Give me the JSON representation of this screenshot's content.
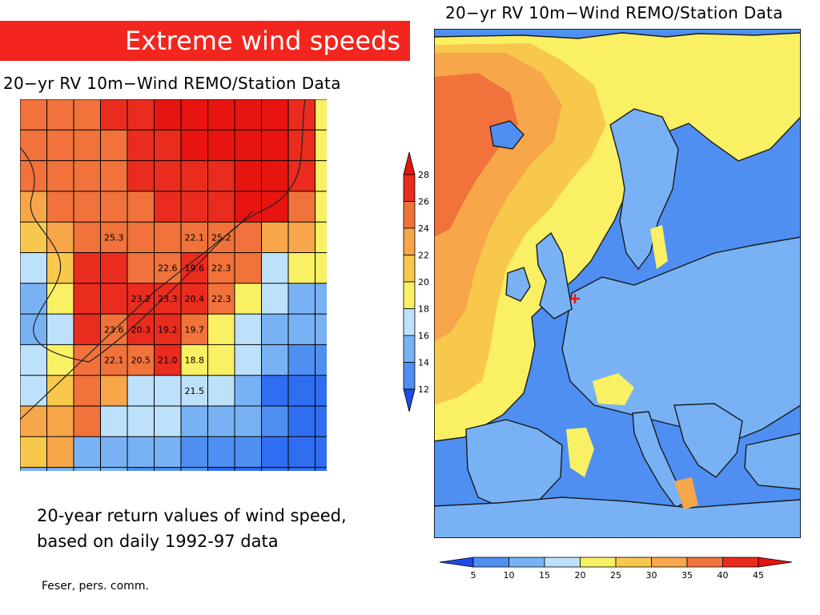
{
  "header": {
    "title": "Extreme wind speeds",
    "accent_color": "#f2261f"
  },
  "left_map": {
    "title": "20−yr RV 10m−Wind REMO/Station Data",
    "rows": [
      [
        8,
        8,
        8,
        9,
        9,
        10,
        10,
        10,
        10,
        10,
        9,
        5,
        4
      ],
      [
        8,
        8,
        8,
        8,
        9,
        9,
        10,
        10,
        10,
        10,
        9,
        5,
        6
      ],
      [
        8,
        8,
        8,
        8,
        9,
        9,
        9,
        9,
        10,
        10,
        9,
        5,
        5
      ],
      [
        7,
        8,
        8,
        8,
        8,
        9,
        9,
        9,
        10,
        10,
        8,
        5,
        5
      ],
      [
        6,
        7,
        8,
        8,
        8,
        8,
        8,
        8,
        8,
        7,
        7,
        5,
        5
      ],
      [
        4,
        6,
        9,
        9,
        8,
        8,
        9,
        8,
        8,
        4,
        5,
        5,
        5
      ],
      [
        3,
        5,
        9,
        9,
        9,
        9,
        9,
        8,
        5,
        4,
        3,
        3,
        2
      ],
      [
        3,
        4,
        9,
        8,
        9,
        9,
        8,
        5,
        4,
        3,
        3,
        3,
        2
      ],
      [
        4,
        5,
        8,
        8,
        8,
        9,
        5,
        5,
        4,
        3,
        2,
        2,
        2
      ],
      [
        4,
        6,
        8,
        7,
        4,
        4,
        4,
        4,
        3,
        1,
        1,
        1,
        1
      ],
      [
        7,
        7,
        8,
        4,
        4,
        4,
        3,
        3,
        3,
        2,
        1,
        1,
        1
      ],
      [
        6,
        7,
        3,
        3,
        3,
        3,
        2,
        2,
        2,
        1,
        1,
        1,
        1
      ],
      [
        3,
        3,
        3,
        3,
        2,
        2,
        2,
        1,
        1,
        1,
        1,
        1,
        1
      ],
      [
        2,
        2,
        2,
        2,
        1,
        1,
        1,
        1,
        1,
        1,
        1,
        1,
        1
      ],
      [
        1,
        1,
        1,
        1,
        1,
        1,
        1,
        1,
        1,
        1,
        1,
        1,
        1
      ]
    ],
    "station_values": [
      {
        "row": 4,
        "col": 3,
        "value": "25.3"
      },
      {
        "row": 4,
        "col": 6,
        "value": "22.1"
      },
      {
        "row": 4,
        "col": 7,
        "value": "25.2"
      },
      {
        "row": 5,
        "col": 5,
        "value": "22.6"
      },
      {
        "row": 5,
        "col": 6,
        "value": "19.6"
      },
      {
        "row": 5,
        "col": 7,
        "value": "22.3"
      },
      {
        "row": 6,
        "col": 4,
        "value": "23.2"
      },
      {
        "row": 6,
        "col": 5,
        "value": "23.3"
      },
      {
        "row": 6,
        "col": 6,
        "value": "20.4"
      },
      {
        "row": 6,
        "col": 7,
        "value": "22.3"
      },
      {
        "row": 7,
        "col": 3,
        "value": "23.6"
      },
      {
        "row": 7,
        "col": 4,
        "value": "20.3"
      },
      {
        "row": 7,
        "col": 5,
        "value": "19.2"
      },
      {
        "row": 7,
        "col": 6,
        "value": "19.7"
      },
      {
        "row": 8,
        "col": 3,
        "value": "22.1"
      },
      {
        "row": 8,
        "col": 4,
        "value": "20.5"
      },
      {
        "row": 8,
        "col": 5,
        "value": "21.0"
      },
      {
        "row": 8,
        "col": 6,
        "value": "18.8"
      },
      {
        "row": 9,
        "col": 6,
        "value": "21.5"
      }
    ],
    "colorbar_ticks": [
      "12",
      "14",
      "16",
      "18",
      "20",
      "22",
      "24",
      "26",
      "28"
    ]
  },
  "right_map": {
    "title": "20−yr RV 10m−Wind REMO/Station Data",
    "colorbar_ticks": [
      "5",
      "10",
      "15",
      "20",
      "25",
      "30",
      "35",
      "40",
      "45"
    ]
  },
  "palette": {
    "bins": [
      "#1d4be6",
      "#2f6ef0",
      "#4f8ff2",
      "#78b2f5",
      "#bde1fb",
      "#faf063",
      "#f8c84c",
      "#f8a64a",
      "#f1723b",
      "#ea2c1f",
      "#e8140f"
    ],
    "land_bin": 7,
    "sea_bin": 2
  },
  "caption": {
    "line1": "20-year return values of wind speed,",
    "line2": "based on daily 1992-97 data"
  },
  "credit": "Feser, pers. comm."
}
